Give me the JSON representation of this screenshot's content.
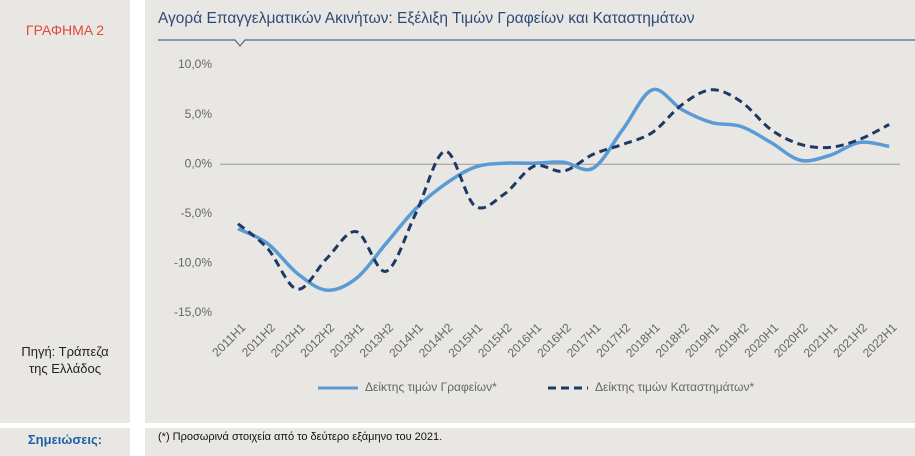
{
  "panel_label": "ΓΡΑΦΗΜΑ 2",
  "source": "Πηγή: Τράπεζα της Ελλάδος",
  "notes_label": "Σημειώσεις:",
  "chart_data": {
    "type": "line",
    "title": "Αγορά Επαγγελματικών Ακινήτων: Εξέλιξη Τιμών Γραφείων και Καταστημάτων",
    "footnote": "(*) Προσωρινά στοιχεία από το δεύτερο εξάμηνο του 2021.",
    "categories": [
      "2011H1",
      "2011H2",
      "2012H1",
      "2012H2",
      "2013H1",
      "2013H2",
      "2014H1",
      "2014H2",
      "2015H1",
      "2015H2",
      "2016H1",
      "2016H2",
      "2017H1",
      "2017H2",
      "2018H1",
      "2018H2",
      "2019H1",
      "2019H2",
      "2020H1",
      "2020H2",
      "2021H1",
      "2021H2",
      "2022H1"
    ],
    "series": [
      {
        "name": "Δείκτης τιμών Γραφείων*",
        "color": "#5b9bd5",
        "dash": false,
        "values": [
          -6.5,
          -8,
          -11,
          -12.7,
          -11.5,
          -8,
          -4.5,
          -2,
          -0.3,
          0.1,
          0.1,
          0.2,
          -0.4,
          3.5,
          7.5,
          5.5,
          4.2,
          3.8,
          2.2,
          0.4,
          0.9,
          2.2,
          1.8
        ]
      },
      {
        "name": "Δείκτης τιμών Καταστημάτων*",
        "color": "#1f3864",
        "dash": true,
        "values": [
          -6,
          -8.5,
          -12.6,
          -9.5,
          -6.8,
          -10.8,
          -5,
          1.3,
          -4.2,
          -3,
          -0.2,
          -0.7,
          1,
          2,
          3.2,
          6,
          7.5,
          6.3,
          3.5,
          2,
          1.7,
          2.5,
          4
        ]
      }
    ],
    "ylim": [
      -15,
      10
    ],
    "yticks": [
      {
        "value": 10,
        "label": "10,0%"
      },
      {
        "value": 5,
        "label": "5,0%"
      },
      {
        "value": 0,
        "label": "0,0%"
      },
      {
        "value": -5,
        "label": "-5,0%"
      },
      {
        "value": -10,
        "label": "-10,0%"
      },
      {
        "value": -15,
        "label": "-15,0%"
      }
    ],
    "zero_line": true
  }
}
